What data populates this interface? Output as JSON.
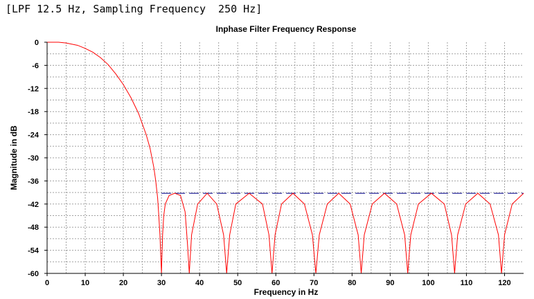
{
  "caption": "[LPF 12.5 Hz, Sampling Frequency  250 Hz]",
  "colors": {
    "response": "#ff0000",
    "stopband_line": "#00008b",
    "grid": "#a0a0a0"
  },
  "chart_data": {
    "type": "line",
    "title": "Inphase Filter Frequency Response",
    "xlabel": "Frequency in Hz",
    "ylabel": "Magnitude in dB",
    "xlim": [
      0,
      125
    ],
    "ylim": [
      -60,
      0
    ],
    "x_ticks": [
      0,
      10,
      20,
      30,
      40,
      50,
      60,
      70,
      80,
      90,
      100,
      110,
      120
    ],
    "y_ticks": [
      0,
      -6,
      -12,
      -18,
      -24,
      -30,
      -36,
      -42,
      -48,
      -54,
      -60
    ],
    "grid": true,
    "stopband_ripple_level_db": -39.2,
    "series": [
      {
        "x": [
          0,
          3,
          5,
          8,
          10,
          12,
          14,
          16,
          18,
          20,
          22,
          24,
          26,
          27,
          28,
          28.5,
          29,
          29.3,
          29.6,
          30,
          30.3,
          30.6,
          31,
          32,
          33.5,
          35,
          36.2,
          36.8,
          37.3,
          37.9,
          39.5,
          42,
          44.5,
          46.3,
          47.1,
          47.9,
          49.5,
          53,
          56.5,
          58.2,
          59,
          59.8,
          61.5,
          64.5,
          67.5,
          69.6,
          70.5,
          71.4,
          73.5,
          76.5,
          79.5,
          81.6,
          82.4,
          83.2,
          85.3,
          88.5,
          91.7,
          93.8,
          94.6,
          95.4,
          97.4,
          100.8,
          104.2,
          106.1,
          106.9,
          107.7,
          109.8,
          113,
          116.2,
          118.4,
          119.2,
          120,
          122,
          125
        ],
        "y": [
          0,
          0,
          -0.2,
          -0.8,
          -1.6,
          -2.6,
          -4,
          -5.8,
          -8.2,
          -11,
          -14.4,
          -18.5,
          -24,
          -27.5,
          -32.5,
          -36,
          -40.5,
          -45,
          -50,
          -60,
          -50,
          -45,
          -42,
          -39.8,
          -39.2,
          -39.8,
          -44,
          -52,
          -60,
          -50,
          -42,
          -39.2,
          -42,
          -50,
          -60,
          -50,
          -42,
          -39.2,
          -42,
          -50,
          -60,
          -50,
          -42,
          -39.2,
          -42,
          -50,
          -60,
          -50,
          -42,
          -39.2,
          -42,
          -50,
          -60,
          -50,
          -42,
          -39.2,
          -42,
          -50,
          -60,
          -50,
          -42,
          -39.2,
          -42,
          -50,
          -60,
          -50,
          -42,
          -39.2,
          -42,
          -50,
          -60,
          -50,
          -42,
          -39.2
        ]
      }
    ]
  }
}
